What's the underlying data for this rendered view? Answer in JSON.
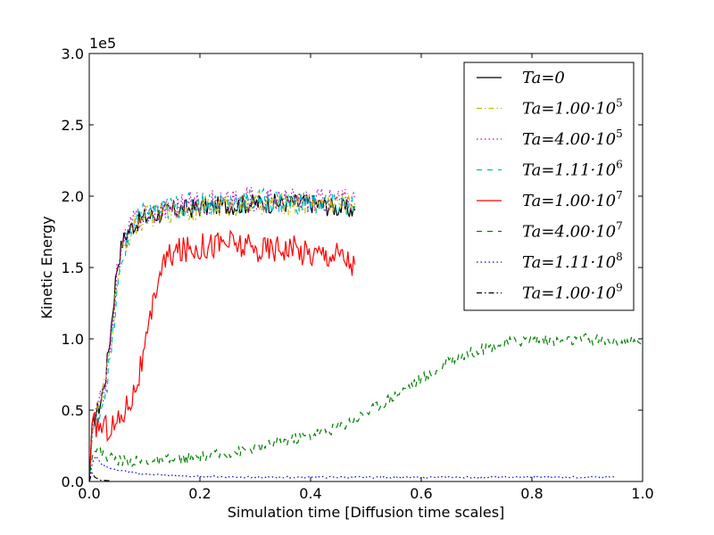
{
  "chart_data": {
    "type": "line",
    "title": "",
    "xlabel": "Simulation time [Diffusion time scales]",
    "ylabel": "Kinetic Energy",
    "y_scale_label": "1e5",
    "xlim": [
      0.0,
      1.0
    ],
    "ylim": [
      0.0,
      3.0
    ],
    "x_ticks": [
      "0.0",
      "0.2",
      "0.4",
      "0.6",
      "0.8",
      "1.0"
    ],
    "y_ticks": [
      "0.0",
      "0.5",
      "1.0",
      "1.5",
      "2.0",
      "2.5",
      "3.0"
    ],
    "grid": false,
    "legend_position": "top-right",
    "series": [
      {
        "name": "Ta=0",
        "legend_base": "Ta=0",
        "legend_exp": "",
        "color": "#000000",
        "style": "solid",
        "noise": 0.07,
        "x": [
          0.0,
          0.005,
          0.01,
          0.02,
          0.03,
          0.04,
          0.05,
          0.06,
          0.07,
          0.08,
          0.1,
          0.15,
          0.2,
          0.3,
          0.4,
          0.48
        ],
        "y": [
          0.0,
          0.35,
          0.45,
          0.55,
          0.75,
          1.1,
          1.5,
          1.68,
          1.75,
          1.8,
          1.85,
          1.9,
          1.92,
          1.95,
          1.95,
          1.9
        ]
      },
      {
        "name": "Ta=1.00·10^5",
        "legend_base": "Ta=1.00·10",
        "legend_exp": "5",
        "color": "#bfbf00",
        "style": "dashdot",
        "noise": 0.08,
        "x": [
          0.0,
          0.005,
          0.01,
          0.02,
          0.03,
          0.04,
          0.05,
          0.06,
          0.07,
          0.08,
          0.1,
          0.15,
          0.2,
          0.3,
          0.4,
          0.48
        ],
        "y": [
          0.0,
          0.35,
          0.45,
          0.55,
          0.7,
          1.0,
          1.4,
          1.6,
          1.7,
          1.78,
          1.85,
          1.9,
          1.92,
          1.95,
          1.95,
          1.95
        ]
      },
      {
        "name": "Ta=4.00·10^5",
        "legend_base": "Ta=4.00·10",
        "legend_exp": "5",
        "color": "#bf00bf",
        "style": "dotted",
        "noise": 0.09,
        "x": [
          0.0,
          0.005,
          0.01,
          0.02,
          0.03,
          0.04,
          0.05,
          0.06,
          0.07,
          0.08,
          0.1,
          0.15,
          0.2,
          0.3,
          0.4,
          0.48
        ],
        "y": [
          0.0,
          0.35,
          0.45,
          0.55,
          0.72,
          1.05,
          1.45,
          1.65,
          1.75,
          1.82,
          1.88,
          1.93,
          1.95,
          1.98,
          1.97,
          1.98
        ]
      },
      {
        "name": "Ta=1.11·10^6",
        "legend_base": "Ta=1.11·10",
        "legend_exp": "6",
        "color": "#00bfbf",
        "style": "dashed",
        "noise": 0.09,
        "x": [
          0.0,
          0.005,
          0.01,
          0.02,
          0.03,
          0.04,
          0.05,
          0.06,
          0.07,
          0.08,
          0.1,
          0.15,
          0.2,
          0.3,
          0.4,
          0.48
        ],
        "y": [
          0.0,
          0.33,
          0.42,
          0.52,
          0.65,
          0.9,
          1.3,
          1.55,
          1.7,
          1.8,
          1.87,
          1.92,
          1.95,
          1.97,
          1.95,
          1.93
        ]
      },
      {
        "name": "Ta=1.00·10^7",
        "legend_base": "Ta=1.00·10",
        "legend_exp": "7",
        "color": "#ff0000",
        "style": "solid",
        "noise": 0.1,
        "x": [
          0.0,
          0.005,
          0.01,
          0.03,
          0.05,
          0.07,
          0.08,
          0.09,
          0.1,
          0.11,
          0.12,
          0.13,
          0.15,
          0.2,
          0.25,
          0.3,
          0.35,
          0.4,
          0.45,
          0.48
        ],
        "y": [
          0.0,
          0.35,
          0.4,
          0.38,
          0.4,
          0.55,
          0.62,
          0.75,
          0.9,
          1.1,
          1.35,
          1.5,
          1.6,
          1.65,
          1.68,
          1.62,
          1.65,
          1.6,
          1.6,
          1.52
        ]
      },
      {
        "name": "Ta=4.00·10^7",
        "legend_base": "Ta=4.00·10",
        "legend_exp": "7",
        "color": "#008000",
        "style": "dashed",
        "noise": 0.04,
        "x": [
          0.0,
          0.005,
          0.01,
          0.02,
          0.05,
          0.1,
          0.15,
          0.2,
          0.25,
          0.3,
          0.35,
          0.4,
          0.45,
          0.5,
          0.55,
          0.6,
          0.62,
          0.65,
          0.7,
          0.75,
          0.8,
          0.85,
          0.9,
          0.95,
          1.0
        ],
        "y": [
          0.0,
          0.2,
          0.24,
          0.2,
          0.15,
          0.14,
          0.15,
          0.17,
          0.2,
          0.23,
          0.28,
          0.33,
          0.38,
          0.48,
          0.6,
          0.72,
          0.75,
          0.85,
          0.92,
          0.97,
          1.0,
          0.98,
          1.0,
          0.98,
          0.97
        ]
      },
      {
        "name": "Ta=1.11·10^8",
        "legend_base": "Ta=1.11·10",
        "legend_exp": "8",
        "color": "#0000ff",
        "style": "dotted",
        "noise": 0.006,
        "x": [
          0.0,
          0.005,
          0.012,
          0.02,
          0.04,
          0.08,
          0.15,
          0.2,
          0.3,
          0.4,
          0.5,
          0.6,
          0.7,
          0.8,
          0.9,
          0.95
        ],
        "y": [
          0.0,
          0.12,
          0.18,
          0.13,
          0.09,
          0.06,
          0.04,
          0.035,
          0.03,
          0.03,
          0.03,
          0.03,
          0.03,
          0.03,
          0.03,
          0.03
        ]
      },
      {
        "name": "Ta=1.00·10^9",
        "legend_base": "Ta=1.00·10",
        "legend_exp": "9",
        "color": "#000000",
        "style": "dashdot",
        "noise": 0.002,
        "x": [
          0.0,
          0.005,
          0.01,
          0.02,
          0.04
        ],
        "y": [
          0.0,
          0.06,
          0.03,
          0.01,
          0.005
        ]
      }
    ]
  }
}
